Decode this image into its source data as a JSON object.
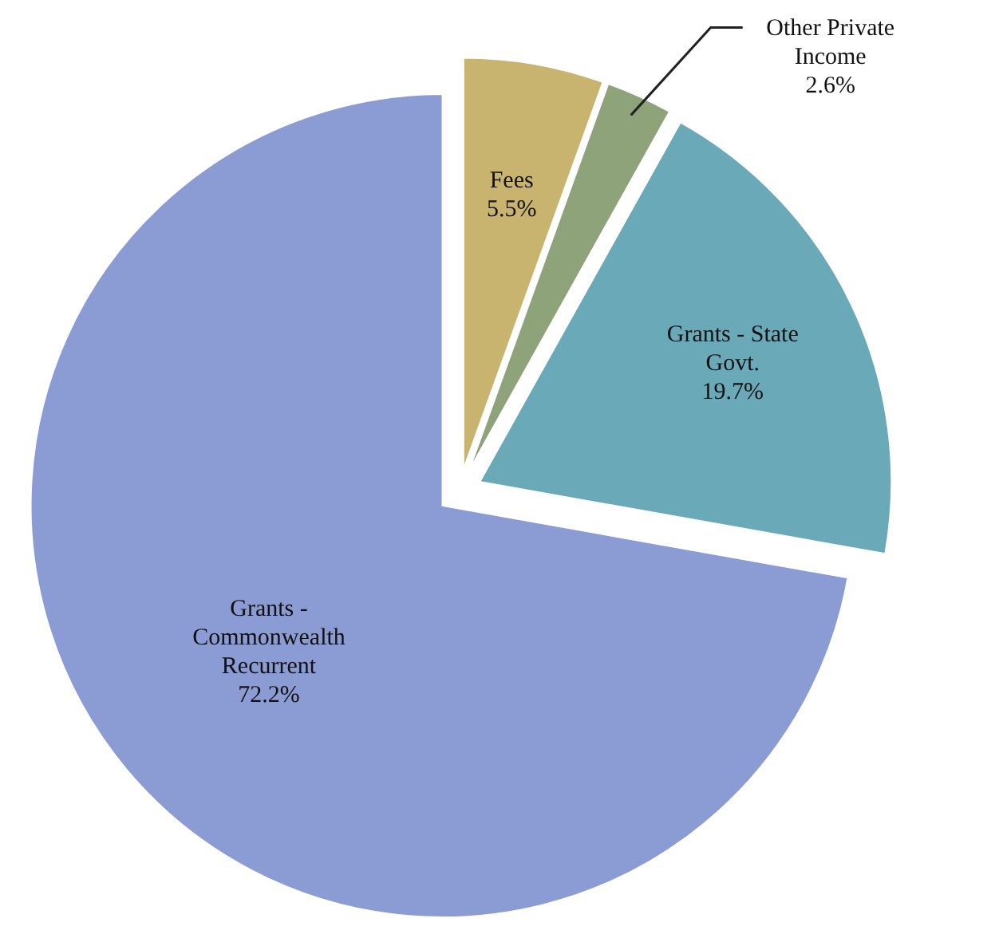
{
  "chart_data": {
    "type": "pie",
    "categories": [
      "Fees",
      "Other Private Income",
      "Grants - State Govt.",
      "Grants - Commonwealth Recurrent"
    ],
    "values": [
      5.5,
      2.6,
      19.7,
      72.2
    ],
    "value_labels": [
      "5.5%",
      "2.6%",
      "19.7%",
      "72.2%"
    ],
    "colors": [
      "#c8b46e",
      "#8fa37a",
      "#6aa9b8",
      "#8b9bd4"
    ]
  }
}
